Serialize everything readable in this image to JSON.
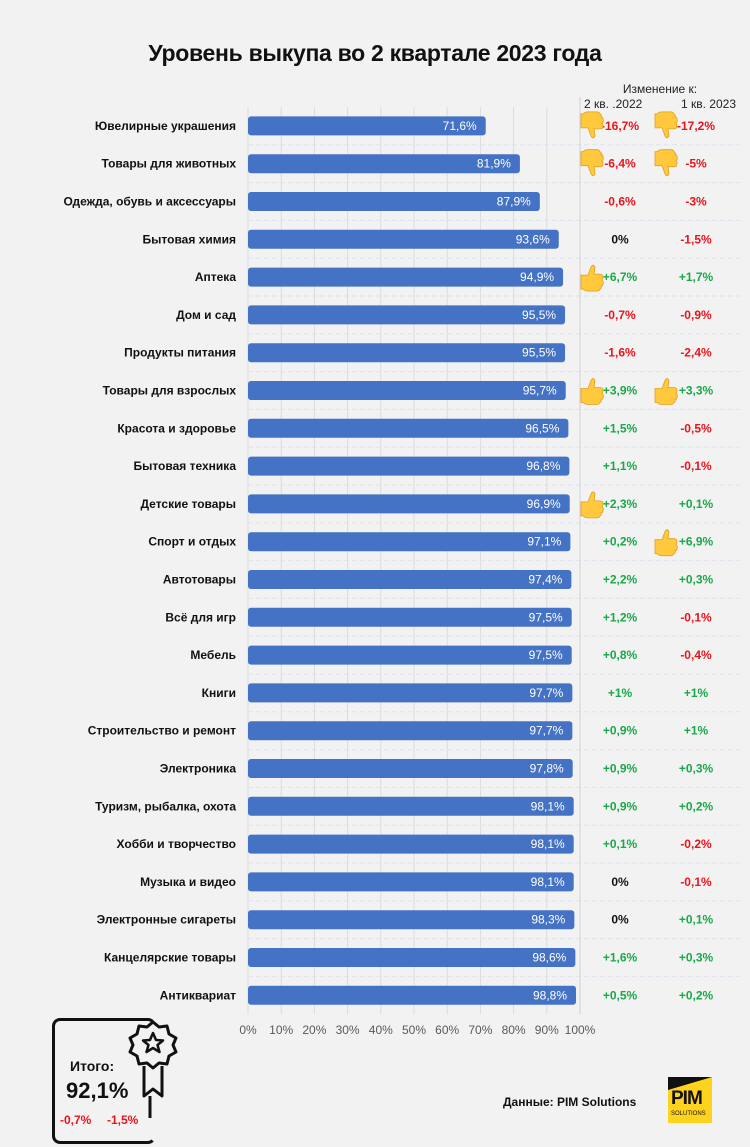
{
  "title": "Уровень выкупа во 2 квартале 2023 года",
  "change_header": {
    "label": "Изменение к:",
    "col1": "2 кв. .2022",
    "col2": "1 кв. 2023"
  },
  "colors": {
    "bar": "#4472c4",
    "positive": "#1aa84a",
    "negative": "#e8141c",
    "neutral": "#111111",
    "background": "#f2f2f2"
  },
  "chart_data": {
    "type": "bar",
    "orientation": "horizontal",
    "title": "Уровень выкупа во 2 квартале 2023 года",
    "xlabel": "",
    "ylabel": "",
    "xlim": [
      0,
      100
    ],
    "x_ticks": [
      "0%",
      "10%",
      "20%",
      "30%",
      "40%",
      "50%",
      "60%",
      "70%",
      "80%",
      "90%",
      "100%"
    ],
    "grid": true,
    "categories": [
      "Ювелирные украшения",
      "Товары для животных",
      "Одежда, обувь и аксессуары",
      "Бытовая химия",
      "Аптека",
      "Дом и сад",
      "Продукты питания",
      "Товары для взрослых",
      "Красота и здоровье",
      "Бытовая техника",
      "Детские товары",
      "Спорт и отдых",
      "Автотовары",
      "Всё для игр",
      "Мебель",
      "Книги",
      "Строительство и ремонт",
      "Электроника",
      "Туризм, рыбалка, охота",
      "Хобби и творчество",
      "Музыка и видео",
      "Электронные сигареты",
      "Канцелярские товары",
      "Антиквариат"
    ],
    "values": [
      71.6,
      81.9,
      87.9,
      93.6,
      94.9,
      95.5,
      95.5,
      95.7,
      96.5,
      96.8,
      96.9,
      97.1,
      97.4,
      97.5,
      97.5,
      97.7,
      97.7,
      97.8,
      98.1,
      98.1,
      98.1,
      98.3,
      98.6,
      98.8
    ],
    "value_labels": [
      "71,6%",
      "81,9%",
      "87,9%",
      "93,6%",
      "94,9%",
      "95,5%",
      "95,5%",
      "95,7%",
      "96,5%",
      "96,8%",
      "96,9%",
      "97,1%",
      "97,4%",
      "97,5%",
      "97,5%",
      "97,7%",
      "97,7%",
      "97,8%",
      "98,1%",
      "98,1%",
      "98,1%",
      "98,3%",
      "98,6%",
      "98,8%"
    ],
    "change_vs_q2_2022": [
      "-16,7%",
      "-6,4%",
      "-0,6%",
      "0%",
      "+6,7%",
      "-0,7%",
      "-1,6%",
      "+3,9%",
      "+1,5%",
      "+1,1%",
      "+2,3%",
      "+0,2%",
      "+2,2%",
      "+1,2%",
      "+0,8%",
      "+1%",
      "+0,9%",
      "+0,9%",
      "+0,9%",
      "+0,1%",
      "0%",
      "0%",
      "+1,6%",
      "+0,5%"
    ],
    "change_vs_q1_2023": [
      "-17,2%",
      "-5%",
      "-3%",
      "-1,5%",
      "+1,7%",
      "-0,9%",
      "-2,4%",
      "+3,3%",
      "-0,5%",
      "-0,1%",
      "+0,1%",
      "+6,9%",
      "+0,3%",
      "-0,1%",
      "-0,4%",
      "+1%",
      "+1%",
      "+0,3%",
      "+0,2%",
      "-0,2%",
      "-0,1%",
      "+0,1%",
      "+0,3%",
      "+0,2%"
    ],
    "icons_q2_2022": [
      "thumbs-down",
      "thumbs-down",
      "",
      "",
      "thumbs-up",
      "",
      "",
      "thumbs-up",
      "",
      "",
      "thumbs-up",
      "",
      "",
      "",
      "",
      "",
      "",
      "",
      "",
      "",
      "",
      "",
      "",
      ""
    ],
    "icons_q1_2023": [
      "thumbs-down",
      "thumbs-down",
      "",
      "",
      "",
      "",
      "",
      "thumbs-up",
      "",
      "",
      "",
      "thumbs-up",
      "",
      "",
      "",
      "",
      "",
      "",
      "",
      "",
      "",
      "",
      "",
      ""
    ]
  },
  "total": {
    "label": "Итого:",
    "value": "92,1%",
    "change_vs_q2_2022": "-0,7%",
    "change_vs_q1_2023": "-1,5%"
  },
  "source": "Данные: PIM Solutions",
  "logo": {
    "main": "PIM",
    "sub": "SOLUTIONS"
  }
}
